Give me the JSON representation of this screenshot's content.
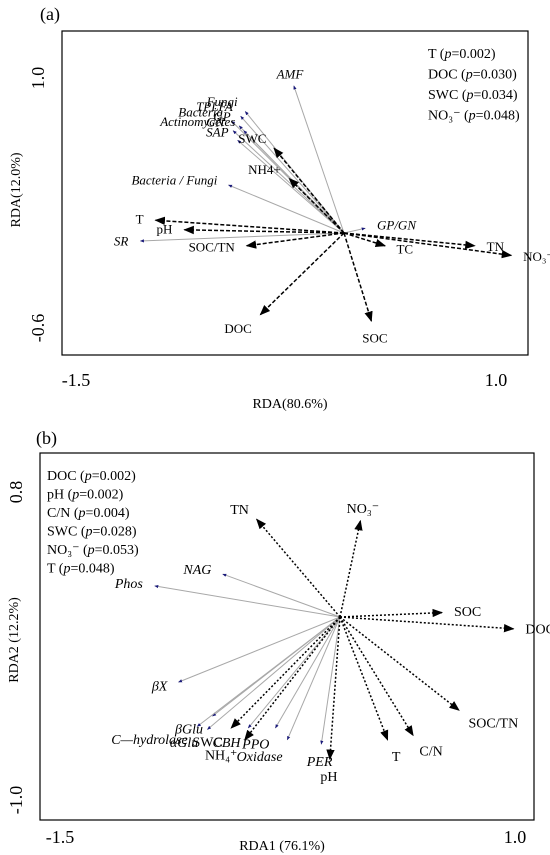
{
  "chart_data": [
    {
      "type": "biplot",
      "panel_label": "(a)",
      "xlabel": "RDA(80.6%)",
      "ylabel": "RDA(12.0%)",
      "xlim": [
        -1.5,
        1.0
      ],
      "ylim": [
        -0.6,
        1.0
      ],
      "x_ticks": [
        "-1.5",
        "1.0"
      ],
      "y_ticks": [
        "1.0",
        "-0.6"
      ],
      "stats": [
        {
          "label": "T (",
          "p": "p",
          "value": "=0.002)"
        },
        {
          "label": "DOC (",
          "p": "p",
          "value": "=0.030)"
        },
        {
          "label": "SWC (",
          "p": "p",
          "value": "=0.034)"
        },
        {
          "label": "NO₃⁻ (",
          "p": "p",
          "value": "=0.048)"
        }
      ],
      "environment_arrows": [
        {
          "label": "SWC",
          "x": -0.46,
          "y": 0.53
        },
        {
          "label": "NH4+",
          "x": -0.36,
          "y": 0.34
        },
        {
          "label": "T",
          "x": -1.24,
          "y": 0.08
        },
        {
          "label": "pH",
          "x": -1.05,
          "y": 0.02
        },
        {
          "label": "SOC/TN",
          "x": -0.64,
          "y": -0.08
        },
        {
          "label": "DOC",
          "x": -0.55,
          "y": -0.51
        },
        {
          "label": "TC",
          "x": 0.27,
          "y": -0.08
        },
        {
          "label": "TN",
          "x": 0.86,
          "y": -0.08
        },
        {
          "label": "NO₃⁻",
          "x": 1.1,
          "y": -0.14
        },
        {
          "label": "SOC",
          "x": 0.18,
          "y": -0.55
        }
      ],
      "response_arrows": [
        {
          "label": "AMF",
          "x": -0.33,
          "y": 0.92
        },
        {
          "label": "TPLFA",
          "x": -0.68,
          "y": 0.73
        },
        {
          "label": "Fungi",
          "x": -0.65,
          "y": 0.76
        },
        {
          "label": "GP",
          "x": -0.69,
          "y": 0.67
        },
        {
          "label": "Bacteria",
          "x": -0.74,
          "y": 0.7
        },
        {
          "label": "GN",
          "x": -0.73,
          "y": 0.64
        },
        {
          "label": "Actinomycetes",
          "x": -0.66,
          "y": 0.64
        },
        {
          "label": "SAP",
          "x": -0.7,
          "y": 0.58
        },
        {
          "label": "Bacteria / Fungi",
          "x": -0.76,
          "y": 0.3
        },
        {
          "label": "GP/GN",
          "x": 0.14,
          "y": 0.03
        },
        {
          "label": "SR",
          "x": -1.34,
          "y": -0.05
        }
      ]
    },
    {
      "type": "biplot",
      "panel_label": "(b)",
      "xlabel": "RDA1 (76.1%)",
      "ylabel": "RDA2 (12.2%)",
      "xlim": [
        -1.5,
        1.0
      ],
      "ylim": [
        -1.0,
        0.8
      ],
      "x_ticks": [
        "-1.5",
        "1.0"
      ],
      "y_ticks": [
        "0.8",
        "-1.0"
      ],
      "stats": [
        {
          "label": "DOC (",
          "p": "p",
          "value": "=0.002)"
        },
        {
          "label": "pH (",
          "p": "p",
          "value": "=0.002)"
        },
        {
          "label": "C/N (",
          "p": "p",
          "value": "=0.004)"
        },
        {
          "label": "SWC (",
          "p": "p",
          "value": "=0.028)"
        },
        {
          "label": "NO₃⁻ (",
          "p": "p",
          "value": "=0.053)"
        },
        {
          "label": "T (",
          "p": "p",
          "value": "=0.048)"
        }
      ],
      "environment_arrows": [
        {
          "label": "TN",
          "x": -0.49,
          "y": 0.66
        },
        {
          "label": "NO₃⁻",
          "x": 0.12,
          "y": 0.65
        },
        {
          "label": "SOC",
          "x": 0.6,
          "y": 0.03
        },
        {
          "label": "DOC",
          "x": 1.02,
          "y": -0.08
        },
        {
          "label": "SOC/TN",
          "x": 0.7,
          "y": -0.63
        },
        {
          "label": "C/N",
          "x": 0.43,
          "y": -0.8
        },
        {
          "label": "T",
          "x": 0.28,
          "y": -0.83
        },
        {
          "label": "pH",
          "x": -0.06,
          "y": -0.96
        },
        {
          "label": "SWC",
          "x": -0.64,
          "y": -0.75
        },
        {
          "label": "NH₄⁺",
          "x": -0.56,
          "y": -0.83
        }
      ],
      "response_arrows": [
        {
          "label": "NAG",
          "x": -0.69,
          "y": 0.29
        },
        {
          "label": "Phos",
          "x": -1.09,
          "y": 0.21
        },
        {
          "label": "βX",
          "x": -0.95,
          "y": -0.44
        },
        {
          "label": "βGlu",
          "x": -0.75,
          "y": -0.67
        },
        {
          "label": "C—hydrolase",
          "x": -0.84,
          "y": -0.74
        },
        {
          "label": "αGlu",
          "x": -0.78,
          "y": -0.76
        },
        {
          "label": "CBH",
          "x": -0.54,
          "y": -0.75
        },
        {
          "label": "PPO",
          "x": -0.38,
          "y": -0.75
        },
        {
          "label": "Oxidase",
          "x": -0.31,
          "y": -0.83
        },
        {
          "label": "PER",
          "x": -0.11,
          "y": -0.86
        }
      ]
    }
  ]
}
